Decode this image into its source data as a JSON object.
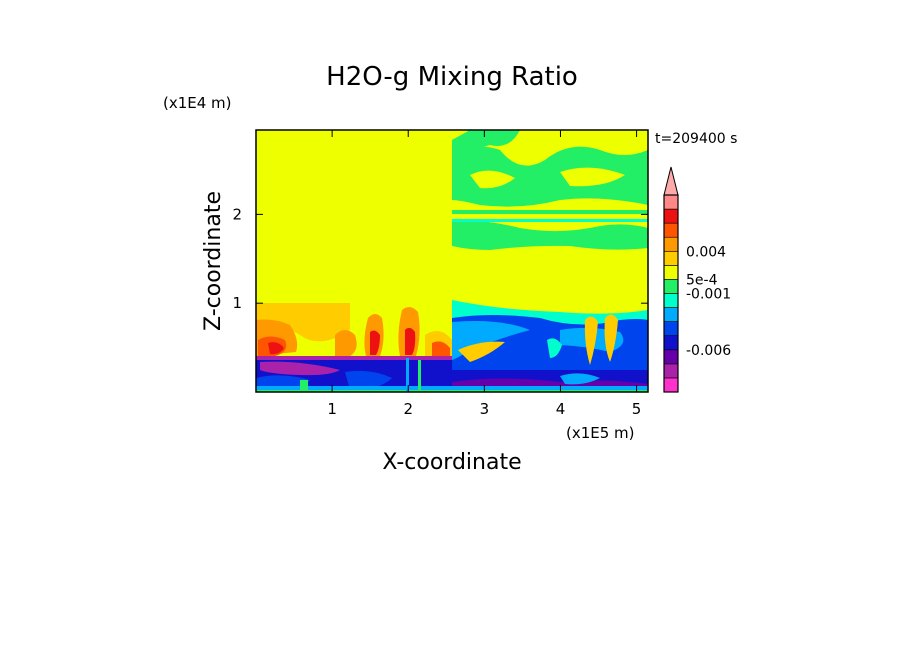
{
  "chart_data": {
    "type": "heatmap",
    "title": "H2O-g Mixing Ratio",
    "xlabel": "X-coordinate",
    "ylabel": "Z-coordinate",
    "x_unit": "(x1E5 m)",
    "y_unit": "(x1E4 m)",
    "time_label": "t=209400 s",
    "xlim": [
      0,
      5.15
    ],
    "ylim": [
      0,
      2.95
    ],
    "x_ticks": [
      1,
      2,
      3,
      4,
      5
    ],
    "y_ticks": [
      1,
      2
    ],
    "colorbar": {
      "extend": "max",
      "colors": [
        "#ff33cc",
        "#aa22aa",
        "#6600aa",
        "#1111cc",
        "#0044ee",
        "#00aaff",
        "#00ffcc",
        "#22ee66",
        "#eeff00",
        "#ffcc00",
        "#ff9900",
        "#ff5500",
        "#ee1111",
        "#ff8888"
      ],
      "extend_color": "#ffaaaa",
      "labels": [
        {
          "text": "0.004",
          "level": 0.004
        },
        {
          "text": "5e-4",
          "level": 0.0005
        },
        {
          "text": "-0.001",
          "level": -0.001
        },
        {
          "text": "-0.006",
          "level": -0.006
        }
      ]
    }
  }
}
